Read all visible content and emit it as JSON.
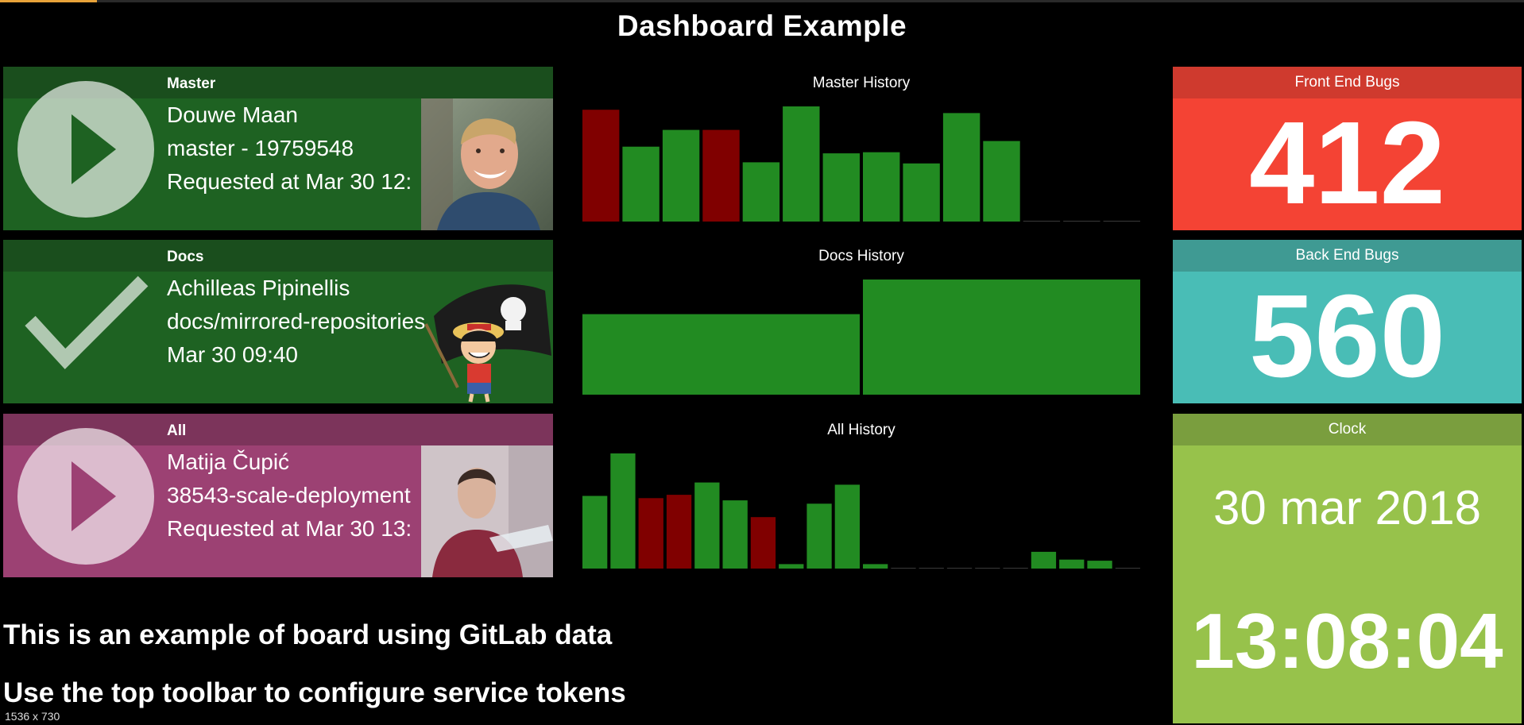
{
  "page": {
    "title": "Dashboard Example",
    "viewport_badge": "1536 x 730"
  },
  "pipelines": [
    {
      "name": "Master",
      "status": "running",
      "author": "Douwe Maan",
      "ref": "master - 19759548",
      "time": "Requested at Mar 30 12:"
    },
    {
      "name": "Docs",
      "status": "success",
      "author": "Achilleas Pipinellis",
      "ref": "docs/mirrored-repositories",
      "time": "Mar 30 09:40"
    },
    {
      "name": "All",
      "status": "running",
      "author": "Matija Čupić",
      "ref": "38543-scale-deployment",
      "time": "Requested at Mar 30 13:"
    }
  ],
  "histories": [
    {
      "title": "Master History",
      "chart_data": {
        "type": "bar",
        "status_colors": {
          "success": "#228b22",
          "failed": "#800000"
        },
        "values": [
          100,
          67,
          82,
          82,
          53,
          103,
          61,
          62,
          52,
          97,
          72,
          0,
          0,
          0
        ],
        "statuses": [
          "failed",
          "success",
          "success",
          "failed",
          "success",
          "success",
          "success",
          "success",
          "success",
          "success",
          "success",
          "none",
          "none",
          "none"
        ]
      }
    },
    {
      "title": "Docs History",
      "chart_data": {
        "type": "bar",
        "status_colors": {
          "success": "#228b22",
          "failed": "#800000"
        },
        "values": [
          72,
          103
        ],
        "statuses": [
          "success",
          "success"
        ]
      }
    },
    {
      "title": "All History",
      "chart_data": {
        "type": "bar",
        "status_colors": {
          "success": "#228b22",
          "failed": "#800000"
        },
        "values": [
          65,
          103,
          63,
          66,
          77,
          61,
          46,
          4,
          58,
          75,
          4,
          0,
          0,
          0,
          0,
          0,
          15,
          8,
          7,
          0
        ],
        "statuses": [
          "success",
          "success",
          "failed",
          "failed",
          "success",
          "success",
          "failed",
          "success",
          "success",
          "success",
          "success",
          "none",
          "none",
          "none",
          "none",
          "none",
          "success",
          "success",
          "success",
          "none"
        ]
      }
    }
  ],
  "tiles": {
    "front_end": {
      "label": "Front End Bugs",
      "value": "412"
    },
    "back_end": {
      "label": "Back End Bugs",
      "value": "560"
    },
    "clock": {
      "label": "Clock",
      "date": "30 mar 2018",
      "time": "13:08:04"
    }
  },
  "info": {
    "line1": "This is an example of board using GitLab data",
    "line2": "Use the top toolbar to configure service tokens"
  }
}
